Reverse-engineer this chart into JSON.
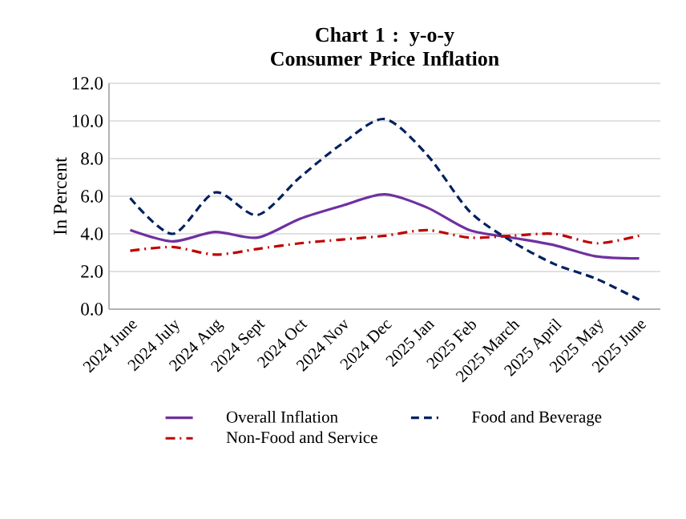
{
  "chart_data": {
    "type": "line",
    "title": "Chart 1 : y-o-y Consumer Price Inflation",
    "ylabel": "In Percent",
    "categories": [
      "2024 June",
      "2024 July",
      "2024 Aug",
      "2024 Sept",
      "2024 Oct",
      "2024 Nov",
      "2024 Dec",
      "2025 Jan",
      "2025 Feb",
      "2025 March",
      "2025 April",
      "2025 May",
      "2025 June"
    ],
    "series": [
      {
        "name": "Overall Inflation",
        "color": "#7030a0",
        "line_style": "solid",
        "values": [
          4.2,
          3.6,
          4.1,
          3.8,
          4.8,
          5.5,
          6.1,
          5.4,
          4.2,
          3.8,
          3.4,
          2.8,
          2.7
        ]
      },
      {
        "name": "Food and Beverage",
        "color": "#002060",
        "line_style": "dashed",
        "values": [
          5.9,
          4.0,
          6.2,
          5.0,
          7.0,
          8.8,
          10.1,
          8.2,
          5.2,
          3.6,
          2.4,
          1.6,
          0.5
        ]
      },
      {
        "name": "Non-Food and Service",
        "color": "#c00000",
        "line_style": "dotted",
        "values": [
          3.1,
          3.3,
          2.9,
          3.2,
          3.5,
          3.7,
          3.9,
          4.2,
          3.8,
          3.9,
          4.0,
          3.5,
          3.9
        ]
      }
    ],
    "ylim": [
      0,
      12
    ],
    "yticks": [
      {
        "value": 0,
        "label": "0.0"
      },
      {
        "value": 2,
        "label": "2.0"
      },
      {
        "value": 4,
        "label": "4.0"
      },
      {
        "value": 6,
        "label": "6.0"
      },
      {
        "value": 8,
        "label": "8.0"
      },
      {
        "value": 10,
        "label": "10.0"
      },
      {
        "value": 12,
        "label": "12.0"
      }
    ],
    "grid": "y",
    "legend": "bottom",
    "marker": "none"
  }
}
